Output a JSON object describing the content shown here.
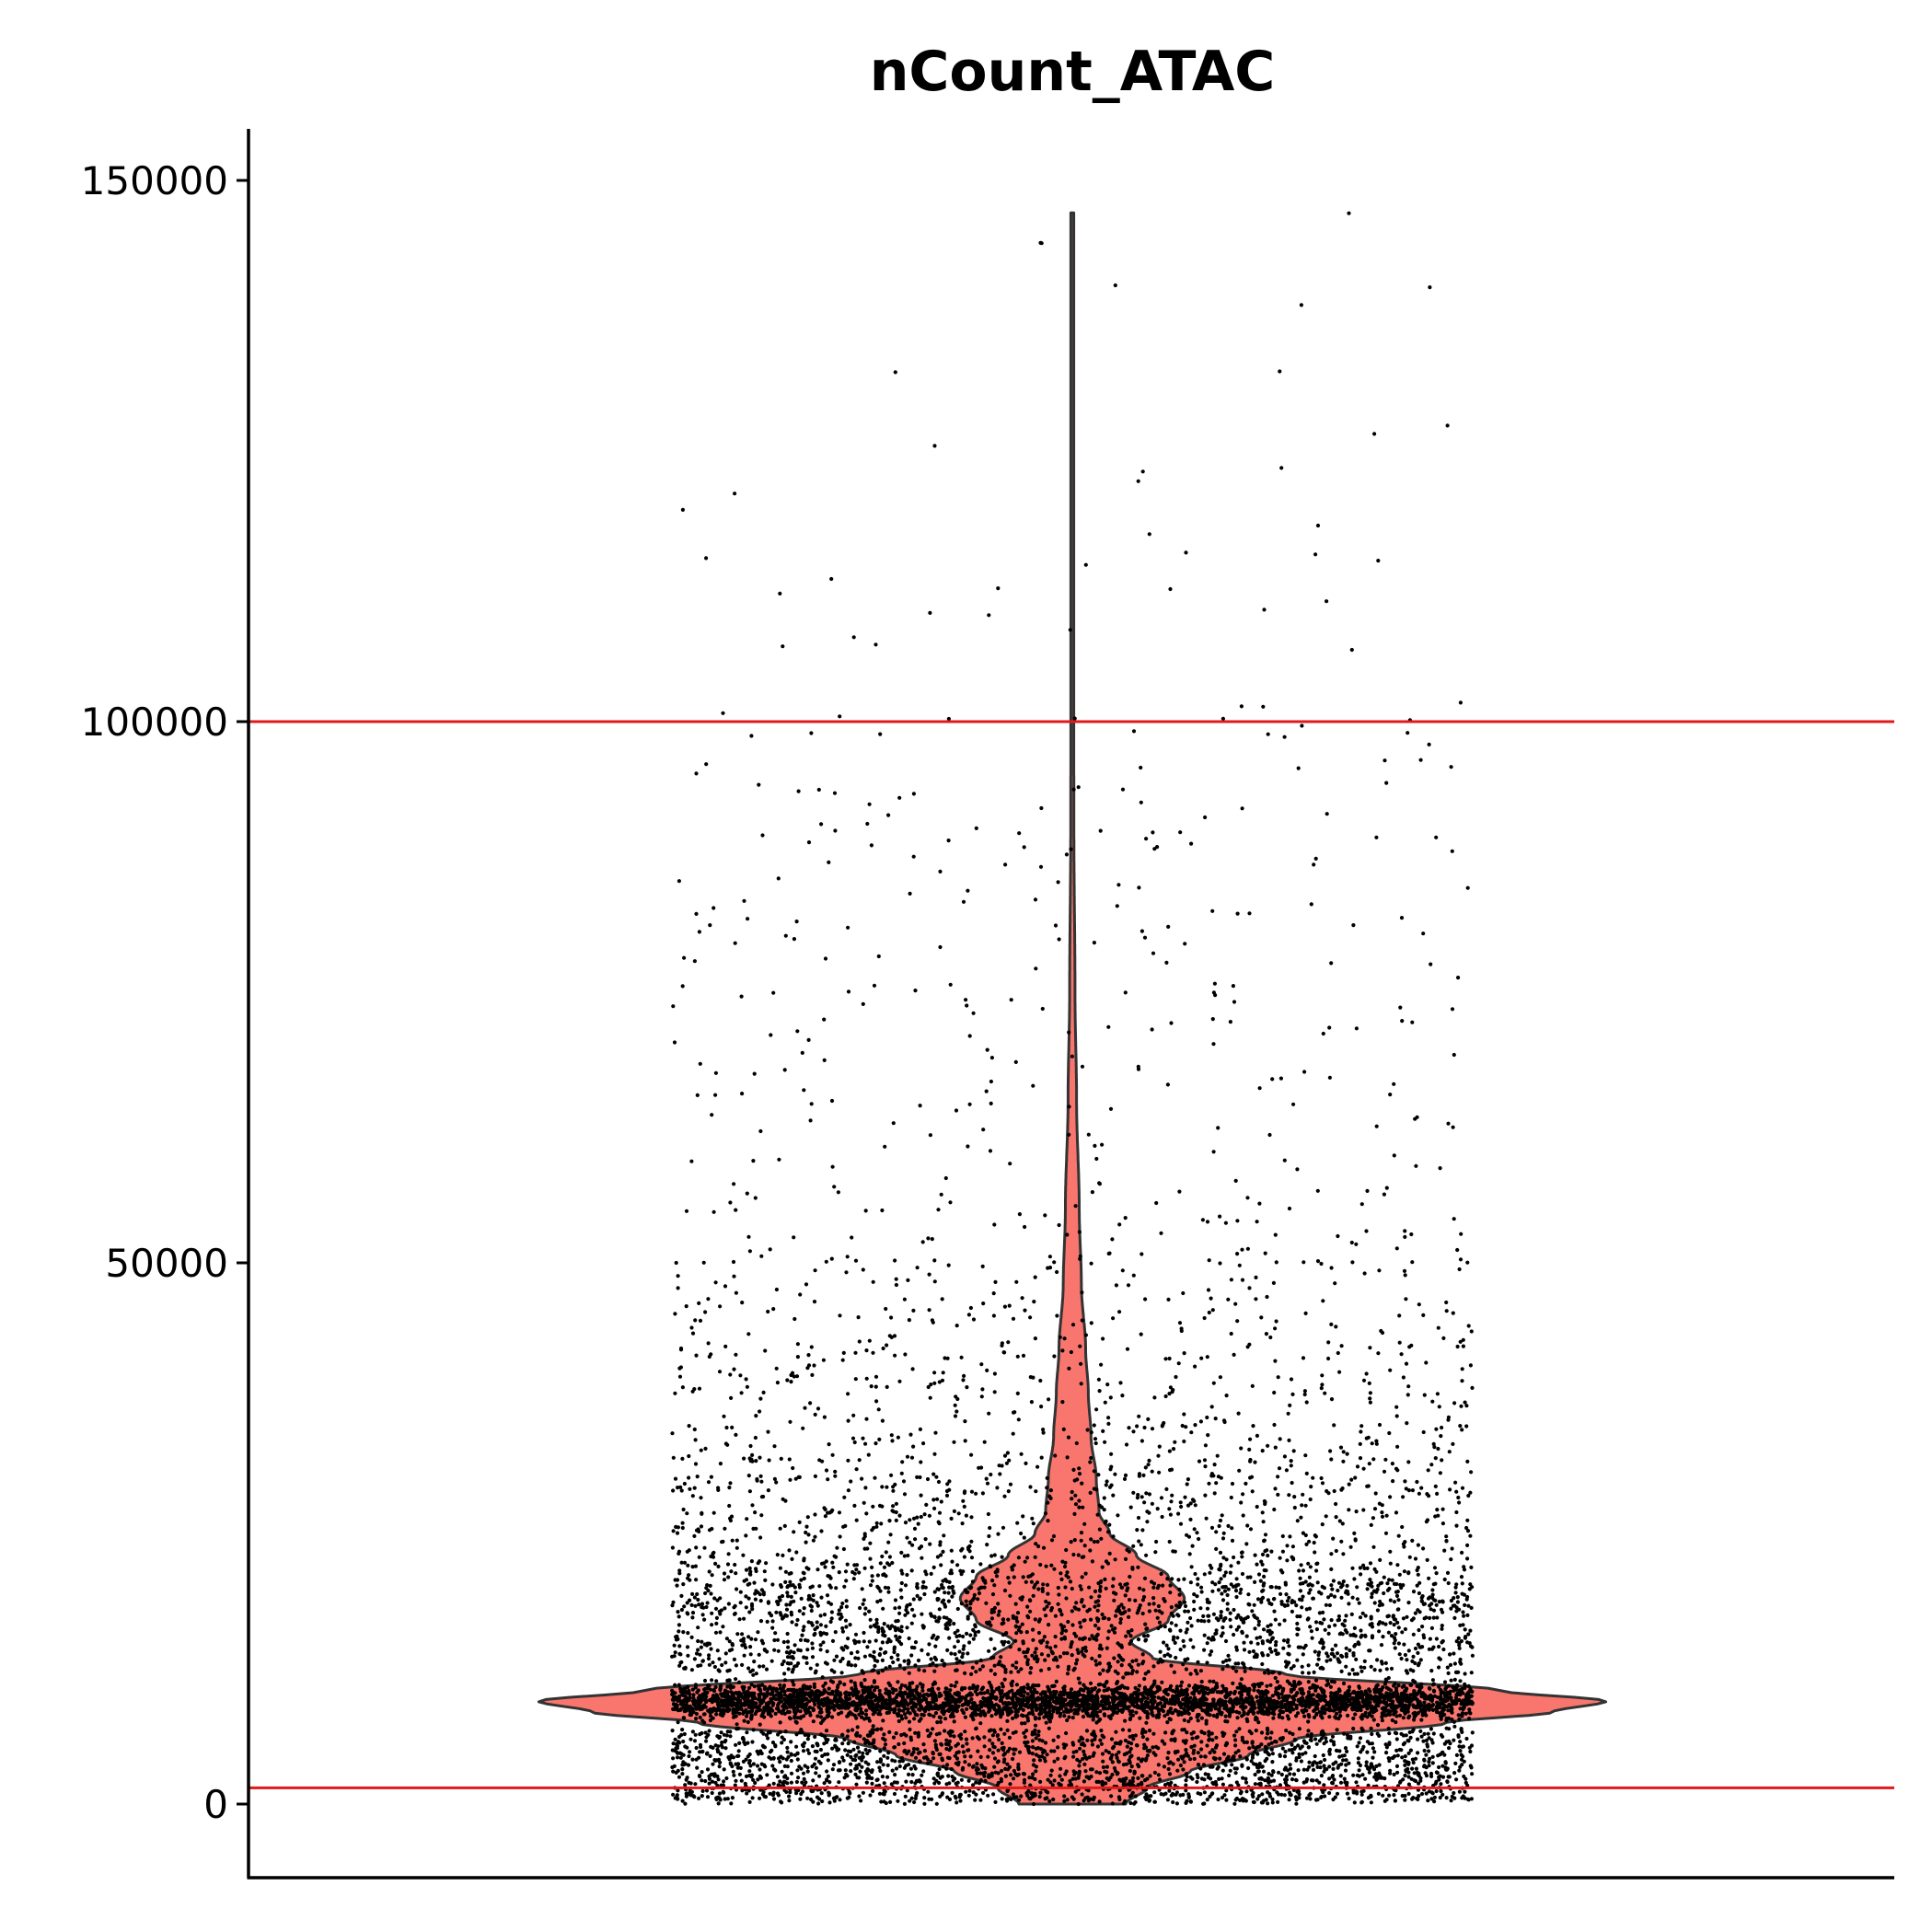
{
  "chart_data": {
    "type": "violin",
    "title": "nCount_ATAC",
    "xlabel": "",
    "ylabel": "",
    "ylim": [
      -8000,
      157000
    ],
    "yticks": [
      0,
      50000,
      100000,
      150000
    ],
    "ytick_labels": [
      "0",
      "50000",
      "100000",
      "150000"
    ],
    "grid": false,
    "legend": "none",
    "threshold_lines": [
      1500,
      100000
    ],
    "violin_profile": [
      {
        "y": 0,
        "half_width": 0.1
      },
      {
        "y": 1500,
        "half_width": 0.14
      },
      {
        "y": 3000,
        "half_width": 0.22
      },
      {
        "y": 4500,
        "half_width": 0.33
      },
      {
        "y": 6000,
        "half_width": 0.42
      },
      {
        "y": 7500,
        "half_width": 0.7
      },
      {
        "y": 8500,
        "half_width": 0.9
      },
      {
        "y": 9500,
        "half_width": 1.0
      },
      {
        "y": 10500,
        "half_width": 0.8
      },
      {
        "y": 12000,
        "half_width": 0.4
      },
      {
        "y": 13500,
        "half_width": 0.15
      },
      {
        "y": 15000,
        "half_width": 0.11
      },
      {
        "y": 17000,
        "half_width": 0.18
      },
      {
        "y": 19000,
        "half_width": 0.21
      },
      {
        "y": 21000,
        "half_width": 0.18
      },
      {
        "y": 23000,
        "half_width": 0.12
      },
      {
        "y": 25000,
        "half_width": 0.07
      },
      {
        "y": 27000,
        "half_width": 0.05
      },
      {
        "y": 30000,
        "half_width": 0.045
      },
      {
        "y": 34000,
        "half_width": 0.035
      },
      {
        "y": 38000,
        "half_width": 0.03
      },
      {
        "y": 42000,
        "half_width": 0.025
      },
      {
        "y": 48000,
        "half_width": 0.017
      },
      {
        "y": 55000,
        "half_width": 0.013
      },
      {
        "y": 65000,
        "half_width": 0.008
      },
      {
        "y": 75000,
        "half_width": 0.005
      },
      {
        "y": 90000,
        "half_width": 0.003
      },
      {
        "y": 110000,
        "half_width": 0.002
      },
      {
        "y": 130000,
        "half_width": 0.0012
      },
      {
        "y": 147000,
        "half_width": 0.0005
      }
    ],
    "points": {
      "count": 9000,
      "x_jitter_half_width": 0.75,
      "approx_distribution": [
        {
          "range": [
            0,
            1500
          ],
          "share": 0.05
        },
        {
          "range": [
            1500,
            7000
          ],
          "share": 0.18
        },
        {
          "range": [
            7000,
            12000
          ],
          "share": 0.39
        },
        {
          "range": [
            12000,
            20000
          ],
          "share": 0.17
        },
        {
          "range": [
            20000,
            30000
          ],
          "share": 0.1
        },
        {
          "range": [
            30000,
            50000
          ],
          "share": 0.07
        },
        {
          "range": [
            50000,
            100000
          ],
          "share": 0.035
        },
        {
          "range": [
            100000,
            147000
          ],
          "share": 0.005
        }
      ]
    },
    "colors": {
      "violin_fill": "#F8766D",
      "violin_stroke": "#333333",
      "points": "#000000",
      "threshold": "#E0191C",
      "axis": "#000000"
    }
  }
}
